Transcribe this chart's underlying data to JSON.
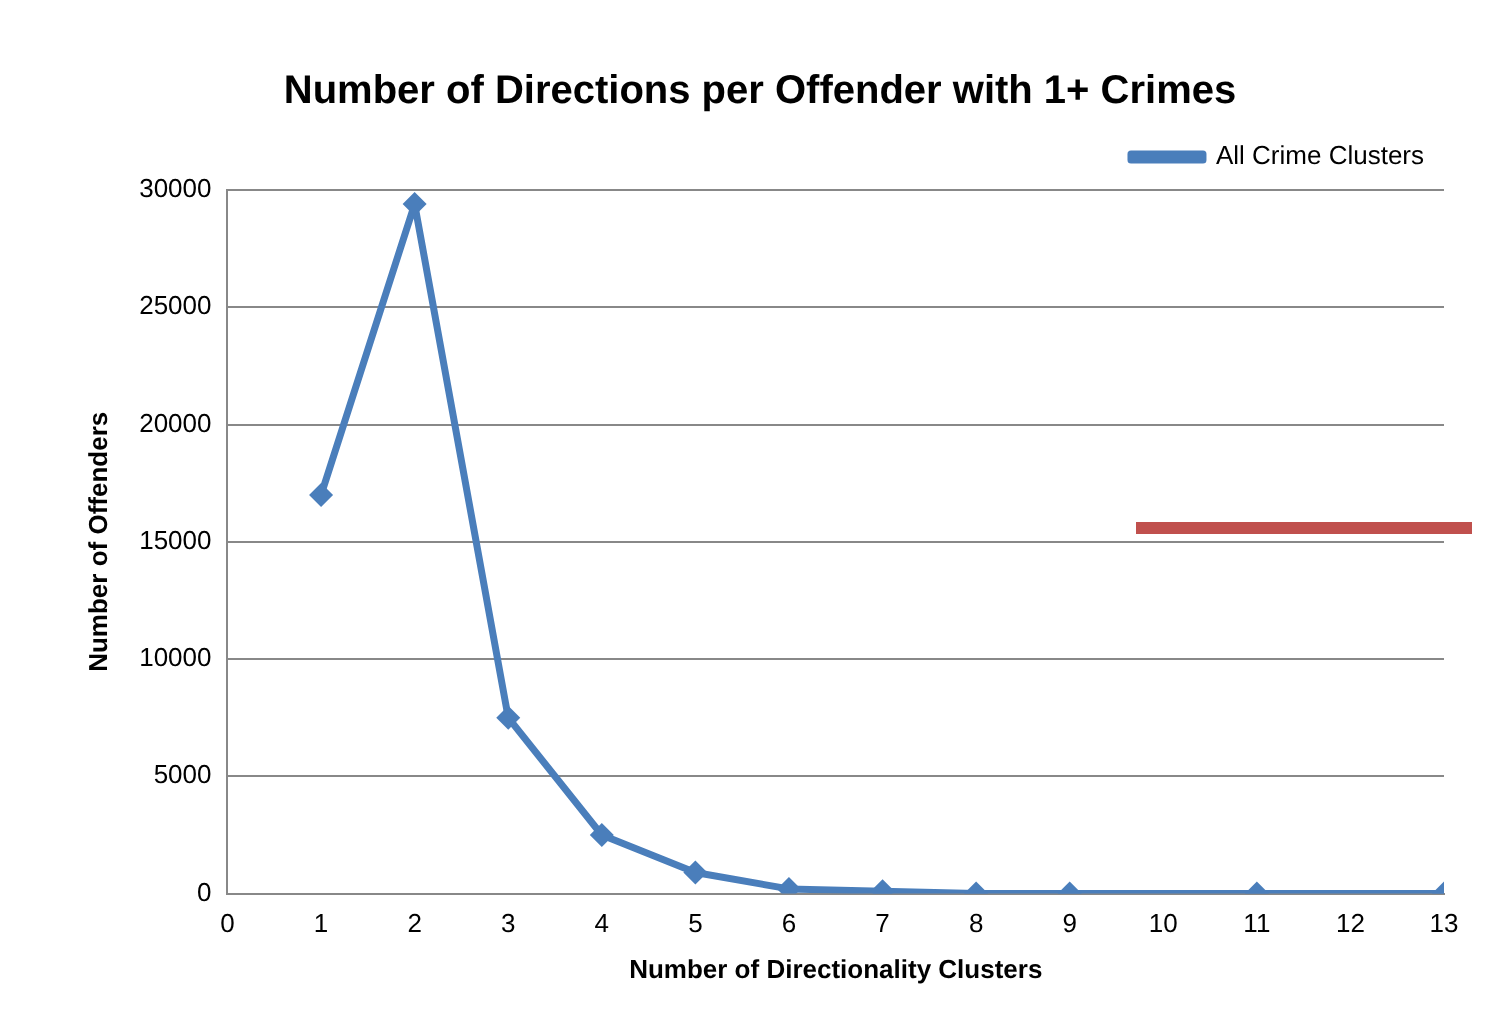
{
  "chart_data": {
    "type": "line",
    "title": "Number of Directions per Offender with 1+ Crimes",
    "xlabel": "Number of Directionality Clusters",
    "ylabel": "Number of Offenders",
    "x": [
      1,
      2,
      3,
      4,
      5,
      6,
      7,
      8,
      9,
      11,
      13
    ],
    "series": [
      {
        "name": "All Crime Clusters",
        "color": "#4a7ebb",
        "values": [
          17000,
          29400,
          7500,
          2500,
          900,
          200,
          100,
          0,
          0,
          0,
          0
        ]
      }
    ],
    "xlim": [
      0,
      13
    ],
    "xticks": [
      0,
      1,
      2,
      3,
      4,
      5,
      6,
      7,
      8,
      9,
      10,
      11,
      12,
      13
    ],
    "ylim": [
      0,
      30000
    ],
    "yticks": [
      0,
      5000,
      10000,
      15000,
      20000,
      25000,
      30000
    ],
    "grid": "y",
    "legend": "top right",
    "marker": "diamond",
    "line_style": "solid"
  }
}
